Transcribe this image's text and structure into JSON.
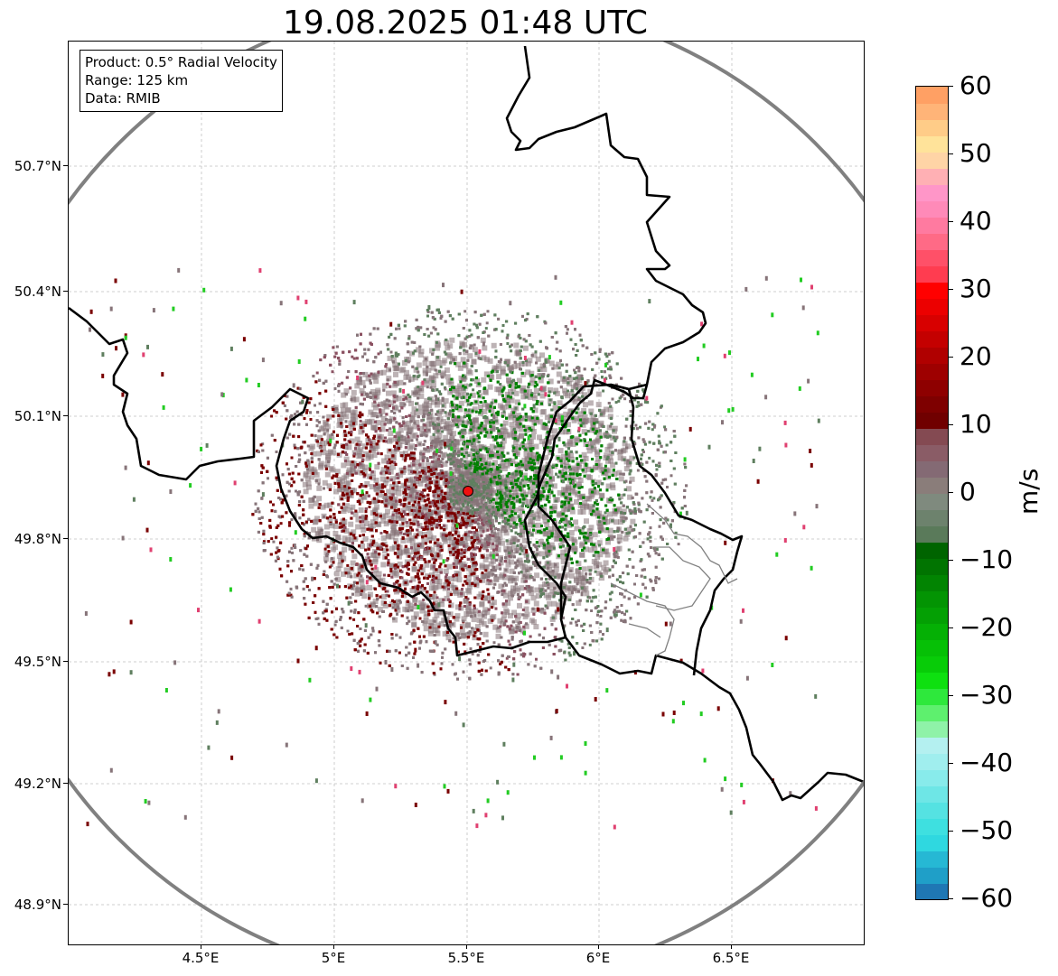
{
  "title": "19.08.2025 01:48 UTC",
  "info_box": {
    "product": "Product: 0.5° Radial Velocity",
    "range": "Range: 125 km",
    "data": "Data: RMIB"
  },
  "latitude_labels": [
    "50.7°N",
    "50.4°N",
    "50.1°N",
    "49.8°N",
    "49.5°N",
    "49.2°N",
    "48.9°N"
  ],
  "longitude_labels": [
    "4.5°E",
    "5°E",
    "5.5°E",
    "6°E",
    "6.5°E"
  ],
  "colorbar": {
    "unit": "m/s",
    "min": -60,
    "max": 60,
    "tick_labels": [
      "60",
      "50",
      "40",
      "30",
      "20",
      "10",
      "0",
      "−10",
      "−20",
      "−30",
      "−40",
      "−50",
      "−60"
    ],
    "tick_values": [
      60,
      50,
      40,
      30,
      20,
      10,
      0,
      -10,
      -20,
      -30,
      -40,
      -50,
      -60
    ],
    "color_steps": [
      "#1f77b4",
      "#1f9fc8",
      "#26b8d4",
      "#2fd8e0",
      "#3ee0e0",
      "#55e2e2",
      "#6ee6e6",
      "#88ebeb",
      "#a0eeee",
      "#b4f0f0",
      "#8ff2a8",
      "#5ef06e",
      "#2ee83c",
      "#0ee010",
      "#08cc08",
      "#06c006",
      "#05b005",
      "#04a004",
      "#039403",
      "#028402",
      "#017401",
      "#006400",
      "#5a7a5a",
      "#6d826d",
      "#7f8a7e",
      "#8a7d7a",
      "#846a74",
      "#8a5c66",
      "#844a52",
      "#700000",
      "#7e0000",
      "#8e0000",
      "#9e0000",
      "#b00000",
      "#c40000",
      "#d80000",
      "#ec0000",
      "#ff0000",
      "#ff3c50",
      "#ff5068",
      "#ff6a86",
      "#ff7aa0",
      "#ff8ab8",
      "#ff96c8",
      "#ffb0b4",
      "#ffd4a6",
      "#ffe39a",
      "#ffcc88",
      "#ffb478",
      "#ffa064"
    ]
  },
  "radar": {
    "site": "radar-site",
    "velocity_colors": {
      "inbound_strong": "#008000",
      "inbound_weak": "#5f7f5f",
      "near_zero": "#877479",
      "outbound_weak": "#8a5060",
      "outbound_strong": "#7a0000",
      "site_marker": "#ee1111"
    }
  },
  "colors": {
    "range_ring": "#808080",
    "border": "#000000",
    "region_boundary": "#808080",
    "gridline": "#c0c0c0"
  }
}
